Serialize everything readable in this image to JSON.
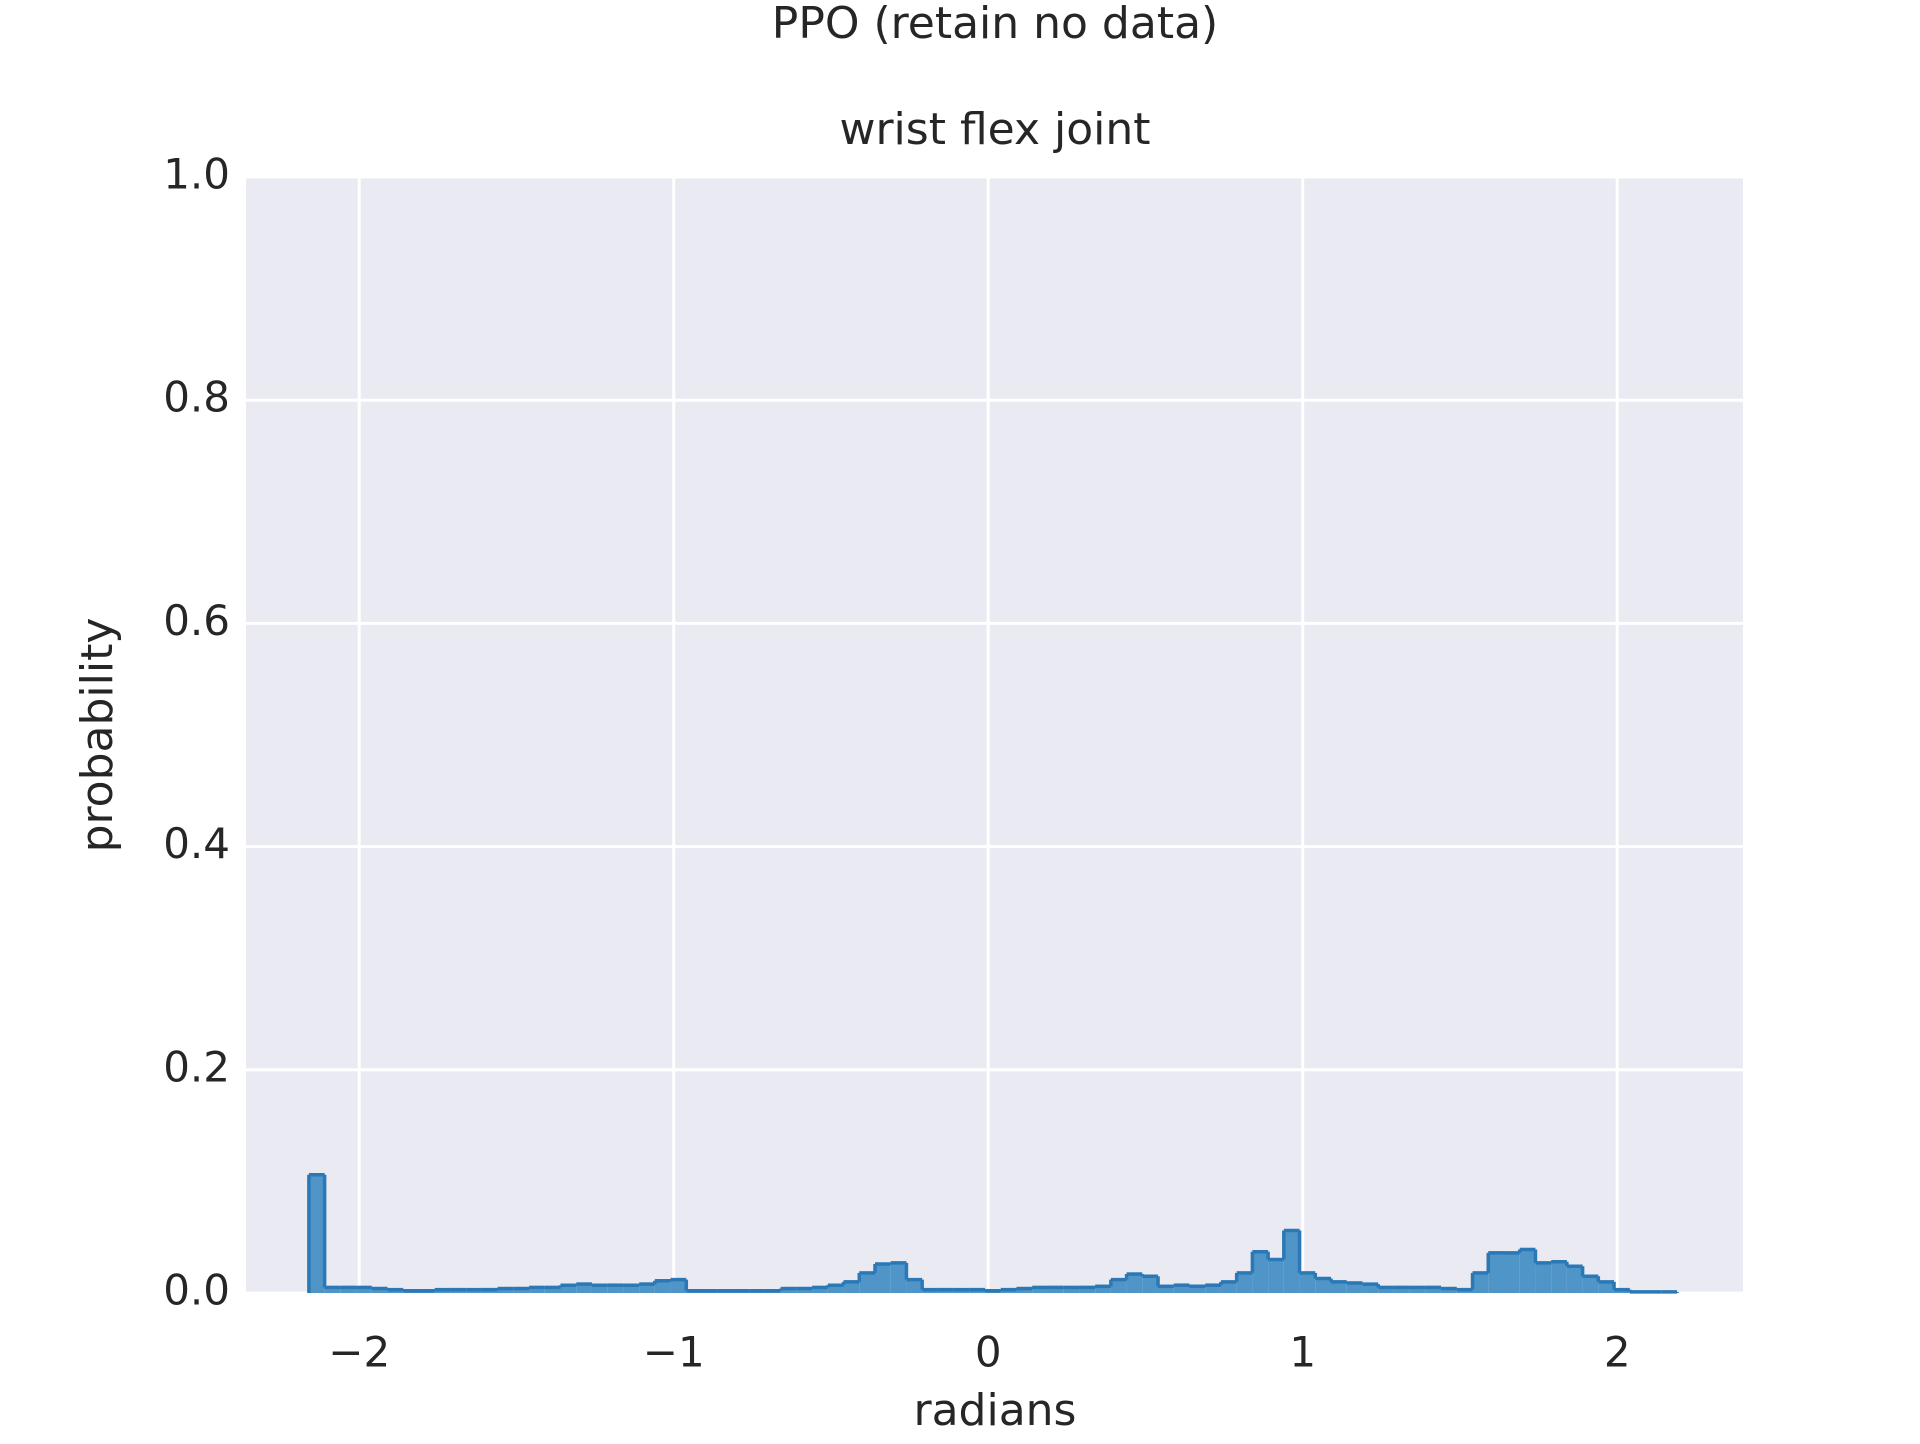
{
  "chart_data": {
    "type": "histogram",
    "title": "PPO (retain no data)",
    "subtitle": "wrist flex joint",
    "x_label": "radians",
    "y_label": "probability",
    "bins": [
      -2.16,
      -2.11,
      -2.06,
      -2.01,
      -1.96,
      -1.91,
      -1.86,
      -1.81,
      -1.76,
      -1.71,
      -1.66,
      -1.61,
      -1.56,
      -1.51,
      -1.46,
      -1.41,
      -1.36,
      -1.31,
      -1.26,
      -1.21,
      -1.16,
      -1.11,
      -1.06,
      -1.01,
      -0.96,
      -0.91,
      -0.86,
      -0.81,
      -0.76,
      -0.71,
      -0.66,
      -0.61,
      -0.56,
      -0.51,
      -0.46,
      -0.41,
      -0.36,
      -0.31,
      -0.26,
      -0.21,
      -0.16,
      -0.11,
      -0.06,
      -0.01,
      0.04,
      0.09,
      0.14,
      0.19,
      0.24,
      0.29,
      0.34,
      0.39,
      0.44,
      0.49,
      0.54,
      0.59,
      0.64,
      0.69,
      0.74,
      0.79,
      0.84,
      0.89,
      0.94,
      0.99,
      1.04,
      1.09,
      1.14,
      1.19,
      1.24,
      1.29,
      1.34,
      1.39,
      1.44,
      1.49,
      1.54,
      1.59,
      1.64,
      1.69,
      1.74,
      1.79,
      1.84,
      1.89,
      1.94,
      1.99,
      2.04,
      2.09,
      2.14,
      2.19
    ],
    "values": [
      0.106,
      0.005,
      0.005,
      0.005,
      0.004,
      0.003,
      0.002,
      0.002,
      0.003,
      0.003,
      0.003,
      0.003,
      0.004,
      0.004,
      0.005,
      0.005,
      0.007,
      0.008,
      0.007,
      0.007,
      0.007,
      0.008,
      0.011,
      0.012,
      0.002,
      0.002,
      0.002,
      0.002,
      0.002,
      0.002,
      0.004,
      0.004,
      0.005,
      0.007,
      0.01,
      0.018,
      0.026,
      0.027,
      0.012,
      0.003,
      0.003,
      0.003,
      0.003,
      0.002,
      0.003,
      0.004,
      0.005,
      0.005,
      0.005,
      0.005,
      0.006,
      0.012,
      0.017,
      0.015,
      0.006,
      0.007,
      0.006,
      0.007,
      0.01,
      0.018,
      0.037,
      0.03,
      0.056,
      0.018,
      0.013,
      0.01,
      0.009,
      0.008,
      0.005,
      0.005,
      0.005,
      0.005,
      0.004,
      0.003,
      0.018,
      0.036,
      0.036,
      0.039,
      0.027,
      0.028,
      0.024,
      0.015,
      0.01,
      0.003,
      0.001,
      0.001,
      0.001
    ],
    "color": "#2a78b5",
    "fill": "#5095c8",
    "xlim": [
      -2.36,
      2.4
    ],
    "ylim": [
      0,
      1
    ],
    "xticks": [
      {
        "value": -2,
        "label": "−2"
      },
      {
        "value": -1,
        "label": "−1"
      },
      0,
      1,
      2
    ],
    "yticks": [
      {
        "value": 0,
        "label": "0.0"
      },
      0.2,
      0.4,
      0.6,
      0.8,
      {
        "value": 1,
        "label": "1.0"
      }
    ],
    "grid": true
  }
}
